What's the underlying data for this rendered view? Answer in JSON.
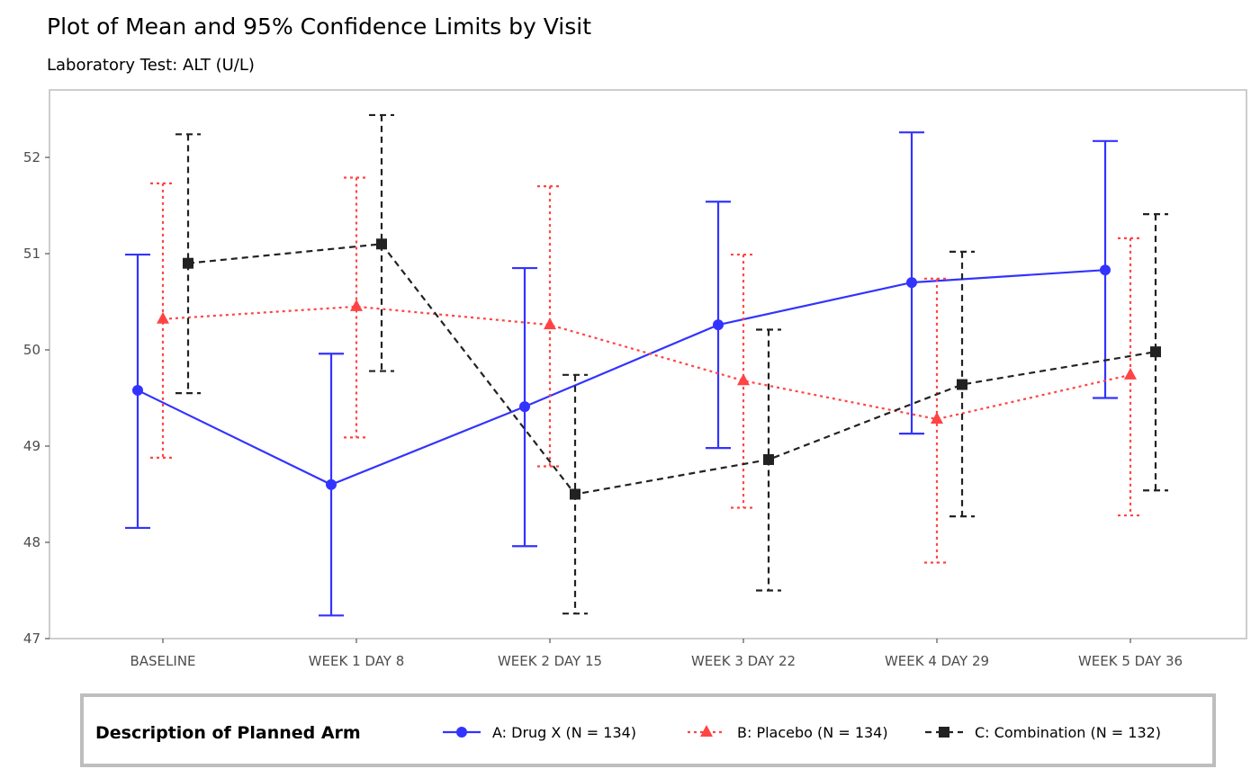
{
  "chart_data": {
    "type": "line",
    "title": "Plot of Mean and 95% Confidence Limits by Visit",
    "subtitle": "Laboratory Test: ALT (U/L)",
    "xlabel": "",
    "ylabel": "",
    "categories": [
      "BASELINE",
      "WEEK 1 DAY 8",
      "WEEK 2 DAY 15",
      "WEEK 3 DAY 22",
      "WEEK 4 DAY 29",
      "WEEK 5 DAY 36"
    ],
    "ylim": [
      47,
      52.6
    ],
    "yticks": [
      47,
      48,
      49,
      50,
      51,
      52
    ],
    "grid": false,
    "legend": {
      "title": "Description of Planned Arm",
      "placement": "bottom"
    },
    "series": [
      {
        "name": "A: Drug X (N = 134)",
        "color": "#3333FF",
        "marker": "circle",
        "linestyle": "solid",
        "mean": [
          49.58,
          48.6,
          49.41,
          50.26,
          50.7,
          50.83
        ],
        "lower": [
          48.15,
          47.24,
          47.96,
          48.98,
          49.13,
          49.5
        ],
        "upper": [
          50.99,
          49.96,
          50.85,
          51.54,
          52.26,
          52.17
        ]
      },
      {
        "name": "B: Placebo (N = 134)",
        "color": "#FF4444",
        "marker": "triangle",
        "linestyle": "dotted",
        "mean": [
          50.32,
          50.45,
          50.26,
          49.68,
          49.28,
          49.74
        ],
        "lower": [
          48.88,
          49.09,
          48.79,
          48.36,
          47.79,
          48.28
        ],
        "upper": [
          51.73,
          51.79,
          51.7,
          50.99,
          50.74,
          51.16
        ]
      },
      {
        "name": "C: Combination (N = 132)",
        "color": "#222222",
        "marker": "square",
        "linestyle": "dashed",
        "mean": [
          50.9,
          51.1,
          48.5,
          48.86,
          49.64,
          49.98
        ],
        "lower": [
          49.55,
          49.78,
          47.26,
          47.5,
          48.27,
          48.54
        ],
        "upper": [
          52.24,
          52.44,
          49.74,
          50.21,
          51.02,
          51.41
        ]
      }
    ]
  }
}
